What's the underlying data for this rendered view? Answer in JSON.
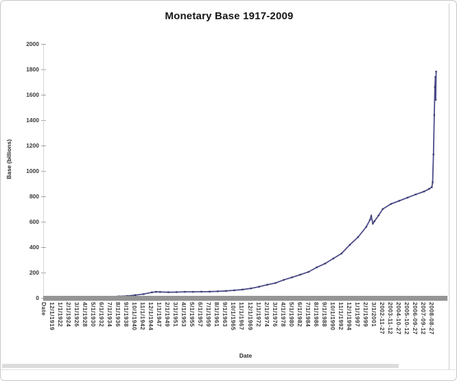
{
  "page": {
    "title": "Monetary Base 1917-2009"
  },
  "chart_data": {
    "type": "line",
    "title": "Monetary Base 1917-2009",
    "xlabel": "Date",
    "ylabel": "Base (billions)",
    "ylim": [
      0,
      2000
    ],
    "ytick_step": 200,
    "yticks": [
      2000,
      1800,
      1600,
      1400,
      1200,
      1000,
      800,
      600,
      400,
      200,
      0
    ],
    "grid": false,
    "legend": "none",
    "colors": {
      "line": "#4c4c8a",
      "marker": "#3a3a6e",
      "axis_band": "#8f8f8f",
      "tick_text": "#3a3a3a",
      "title_text": "#161616",
      "page_border": "#c6c6c6"
    },
    "categories": [
      "Date",
      "12/1/1919",
      "1/1/1922",
      "2/1/1924",
      "3/1/1926",
      "4/1/1928",
      "5/1/1930",
      "6/1/1932",
      "7/1/1934",
      "8/1/1936",
      "9/1/1938",
      "10/1/1940",
      "11/1/1942",
      "12/1/1944",
      "1/1/1947",
      "2/1/1949",
      "3/1/1951",
      "4/1/1953",
      "5/1/1955",
      "6/1/1957",
      "7/1/1959",
      "8/1/1961",
      "9/1/1963",
      "10/1/1965",
      "11/1/1967",
      "12/1/1969",
      "1/1/1972",
      "2/1/1974",
      "3/1/1976",
      "4/1/1978",
      "5/1/1980",
      "6/1/1982",
      "7/1/1984",
      "8/1/1986",
      "9/1/1988",
      "10/1/1990",
      "11/1/1992",
      "12/1/1994",
      "1/1/1997",
      "2/1/1999",
      "3/1/2001",
      "2002-11-27",
      "2003-11-12",
      "2004-10-27",
      "2005-10-12",
      "2006-09-27",
      "2007-09-12",
      "2008-08-27"
    ],
    "series": [
      {
        "name": "Monetary Base",
        "points_format": "[category_axis_index, value_in_billions]",
        "points": [
          [
            0,
            5
          ],
          [
            0.5,
            6.5
          ],
          [
            1,
            6.7
          ],
          [
            2,
            6.3
          ],
          [
            3,
            6.8
          ],
          [
            4,
            7.1
          ],
          [
            5,
            7.1
          ],
          [
            6,
            6.9
          ],
          [
            7,
            7.9
          ],
          [
            8,
            9.8
          ],
          [
            9,
            12.4
          ],
          [
            10,
            15
          ],
          [
            11,
            22
          ],
          [
            12,
            30
          ],
          [
            13,
            44
          ],
          [
            13.5,
            48
          ],
          [
            14,
            47
          ],
          [
            15,
            45
          ],
          [
            16,
            46
          ],
          [
            17,
            48
          ],
          [
            18,
            48
          ],
          [
            19,
            49
          ],
          [
            20,
            50
          ],
          [
            21,
            52
          ],
          [
            22,
            55
          ],
          [
            23,
            60
          ],
          [
            24,
            66
          ],
          [
            25,
            75
          ],
          [
            26,
            88
          ],
          [
            27,
            104
          ],
          [
            28,
            118
          ],
          [
            29,
            142
          ],
          [
            30,
            162
          ],
          [
            31,
            183
          ],
          [
            32,
            205
          ],
          [
            33,
            241
          ],
          [
            34,
            271
          ],
          [
            35,
            310
          ],
          [
            36,
            350
          ],
          [
            37,
            418
          ],
          [
            38,
            479
          ],
          [
            39,
            560
          ],
          [
            39.45,
            615
          ],
          [
            39.6,
            645
          ],
          [
            39.8,
            586
          ],
          [
            40,
            605
          ],
          [
            40.5,
            650
          ],
          [
            41,
            700
          ],
          [
            42,
            740
          ],
          [
            43,
            765
          ],
          [
            44,
            790
          ],
          [
            45,
            815
          ],
          [
            46,
            838
          ],
          [
            46.6,
            858
          ],
          [
            46.95,
            872
          ],
          [
            47.05,
            910
          ],
          [
            47.15,
            1130
          ],
          [
            47.25,
            1440
          ],
          [
            47.32,
            1660
          ],
          [
            47.38,
            1740
          ],
          [
            47.42,
            1560
          ],
          [
            47.47,
            1782
          ]
        ]
      }
    ]
  }
}
